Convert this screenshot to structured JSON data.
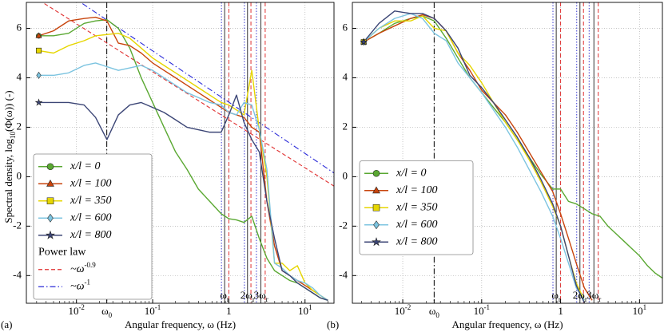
{
  "chart_data": [
    {
      "type": "line",
      "log_x": true,
      "panel_label": "(a)",
      "x_label": "Angular frequency, ω (Hz)",
      "y_label": "Spectral density, log",
      "y_label_sub": "10",
      "y_label_end": "(Φ(ω)) (-)",
      "xlim": [
        0.0022,
        24
      ],
      "ylim": [
        -5.12,
        7.05
      ],
      "xticks": [
        {
          "value": 0.01,
          "label": "10",
          "exponent": "-2"
        },
        {
          "value": 0.025,
          "label": "ω",
          "sub": "0"
        },
        {
          "value": 0.1,
          "label": "10",
          "exponent": "-1"
        },
        1,
        {
          "value": 10,
          "label": "10",
          "exponent": "1"
        }
      ],
      "yticks": [
        -4,
        -2,
        0,
        2,
        4,
        6
      ],
      "grid": true,
      "legend": "lower left",
      "harmonic_ticks": [
        {
          "value": 0.88,
          "label": "ω",
          "sub": "r"
        },
        {
          "value": 1.76,
          "label": "2ω",
          "sub": "r"
        },
        {
          "value": 2.64,
          "label": "3ω",
          "sub": "r"
        }
      ],
      "reference_lines": [
        {
          "x": 0.025,
          "color": "#000000",
          "dash": "dashdot"
        },
        {
          "x": 0.8,
          "color": "#3a3ad0",
          "dash": "dotted"
        },
        {
          "x": 1.6,
          "color": "#3a3ad0",
          "dash": "dotted"
        },
        {
          "x": 2.3,
          "color": "#3a3ad0",
          "dash": "dotted"
        },
        {
          "x": 0.88,
          "color": "#000000",
          "dash": "solid"
        },
        {
          "x": 1.76,
          "color": "#000000",
          "dash": "solid"
        },
        {
          "x": 2.64,
          "color": "#000000",
          "dash": "solid"
        },
        {
          "x": 1.0,
          "color": "#e03030",
          "dash": "dashed"
        },
        {
          "x": 1.95,
          "color": "#e03030",
          "dash": "dashed"
        },
        {
          "x": 3.0,
          "color": "#e03030",
          "dash": "dashed"
        }
      ],
      "x": [
        0.0032,
        0.005,
        0.0079,
        0.0126,
        0.0178,
        0.0251,
        0.0355,
        0.0501,
        0.0708,
        0.1,
        0.141,
        0.2,
        0.282,
        0.398,
        0.562,
        0.794,
        1,
        1.26,
        1.58,
        2,
        2.51,
        3.16,
        3.98,
        5.01,
        6.31,
        7.94,
        10,
        12.6,
        15.8,
        20
      ],
      "series": [
        {
          "name": "x/l = 0",
          "color": "#5aa832",
          "marker": "circle",
          "values": [
            5.7,
            5.7,
            5.8,
            6.2,
            6.3,
            6.35,
            6.0,
            5.2,
            4.0,
            3.0,
            2.0,
            1.0,
            0.3,
            -0.5,
            -1.0,
            -1.5,
            -1.7,
            -1.75,
            -1.85,
            -1.6,
            -2.5,
            -3.3,
            -3.8,
            -4.0,
            -4.2,
            -4.3,
            -4.5,
            -4.7,
            -4.9,
            -5.0
          ]
        },
        {
          "name": "x/l = 100",
          "color": "#c8440c",
          "marker": "triangle",
          "values": [
            5.7,
            5.9,
            6.3,
            6.4,
            6.45,
            6.3,
            5.4,
            5.3,
            5.0,
            4.6,
            4.3,
            4.0,
            3.7,
            3.4,
            3.1,
            2.8,
            2.6,
            2.5,
            2.4,
            2.0,
            1.8,
            -1.0,
            -2.8,
            -3.8,
            -4.0,
            -4.2,
            -4.4,
            -4.6,
            -4.8,
            -5.0
          ]
        },
        {
          "name": "x/l = 350",
          "color": "#e6d600",
          "marker": "square",
          "values": [
            5.1,
            5.0,
            5.3,
            5.5,
            5.7,
            5.75,
            5.8,
            5.6,
            5.2,
            4.8,
            4.5,
            4.2,
            3.9,
            3.6,
            3.3,
            3.0,
            2.9,
            2.7,
            2.5,
            4.3,
            1.9,
            0.0,
            -3.5,
            -3.5,
            -3.8,
            -3.6,
            -4.3,
            -4.6,
            -4.8,
            -5.0
          ]
        },
        {
          "name": "x/l = 600",
          "color": "#7cc4e0",
          "marker": "diamond",
          "values": [
            4.1,
            4.1,
            4.2,
            4.5,
            4.6,
            4.45,
            4.3,
            4.4,
            4.5,
            4.3,
            4.0,
            3.7,
            3.4,
            3.2,
            3.0,
            2.9,
            2.6,
            2.5,
            3.0,
            2.9,
            1.9,
            0.3,
            -3.5,
            -3.7,
            -4.0,
            -4.2,
            -4.3,
            -4.5,
            -4.8,
            -5.0
          ]
        },
        {
          "name": "x/l = 800",
          "color": "#3c4676",
          "marker": "star",
          "values": [
            3.0,
            3.0,
            3.0,
            2.9,
            2.4,
            1.5,
            2.5,
            2.9,
            3.0,
            2.8,
            2.6,
            2.3,
            2.0,
            1.9,
            1.8,
            1.8,
            2.5,
            3.3,
            2.2,
            1.5,
            1.0,
            -1.0,
            -2.5,
            -3.8,
            -4.0,
            -4.3,
            -4.5,
            -4.7,
            -4.9,
            -5.0
          ]
        }
      ],
      "legend_title": "Power law",
      "power_laws": [
        {
          "name": "~ω",
          "exponent": "-0.9",
          "color": "#e03030",
          "dash": "dashed",
          "x": [
            0.0038,
            24
          ],
          "values": [
            7.0,
            -0.38
          ]
        },
        {
          "name": "~ω",
          "exponent": "-1",
          "color": "#2a2ad8",
          "dash": "dashdot",
          "x": [
            0.012,
            24
          ],
          "values": [
            7.0,
            0.15
          ]
        }
      ]
    },
    {
      "type": "line",
      "log_x": true,
      "panel_label": "(b)",
      "x_label": "Angular frequency, ω (Hz)",
      "xlim": [
        0.0023,
        19.5
      ],
      "ylim": [
        -5.12,
        7.05
      ],
      "xticks": [
        {
          "value": 0.01,
          "label": "10",
          "exponent": "-2"
        },
        {
          "value": 0.025,
          "label": "ω",
          "sub": "0"
        },
        {
          "value": 0.1,
          "label": "10",
          "exponent": "-1"
        },
        1,
        {
          "value": 10,
          "label": "10",
          "exponent": "1"
        }
      ],
      "yticks": [
        -4,
        -2,
        0,
        2,
        4,
        6
      ],
      "grid": true,
      "legend": "center left",
      "harmonic_ticks": [
        {
          "value": 0.88,
          "label": "ω",
          "sub": "r"
        },
        {
          "value": 1.76,
          "label": "2ω",
          "sub": "r"
        },
        {
          "value": 2.64,
          "label": "3ω",
          "sub": "r"
        }
      ],
      "reference_lines": [
        {
          "x": 0.025,
          "color": "#000000",
          "dash": "dashdot"
        },
        {
          "x": 0.8,
          "color": "#3a3ad0",
          "dash": "dotted"
        },
        {
          "x": 1.6,
          "color": "#3a3ad0",
          "dash": "dotted"
        },
        {
          "x": 2.3,
          "color": "#3a3ad0",
          "dash": "dotted"
        },
        {
          "x": 0.88,
          "color": "#000000",
          "dash": "solid"
        },
        {
          "x": 1.76,
          "color": "#000000",
          "dash": "solid"
        },
        {
          "x": 2.64,
          "color": "#000000",
          "dash": "solid"
        },
        {
          "x": 1.0,
          "color": "#e03030",
          "dash": "dashed"
        },
        {
          "x": 1.95,
          "color": "#e03030",
          "dash": "dashed"
        },
        {
          "x": 3.0,
          "color": "#e03030",
          "dash": "dashed"
        }
      ],
      "x": [
        0.0032,
        0.005,
        0.0079,
        0.0126,
        0.0178,
        0.0251,
        0.0355,
        0.0501,
        0.0708,
        0.1,
        0.141,
        0.2,
        0.282,
        0.398,
        0.562,
        0.794,
        1,
        1.26,
        1.58,
        2,
        2.51,
        3.16,
        3.98,
        5.01,
        6.31,
        7.94,
        10,
        12.6,
        15.8,
        19.5
      ],
      "series": [
        {
          "name": "x/l = 0",
          "color": "#5aa832",
          "marker": "circle",
          "values": [
            5.45,
            5.8,
            6.2,
            6.4,
            6.5,
            6.3,
            5.6,
            4.8,
            4.0,
            3.4,
            2.8,
            2.2,
            1.5,
            0.8,
            0.1,
            -0.5,
            -0.5,
            -1.0,
            -1.1,
            -1.3,
            -1.5,
            -1.6,
            -2.0,
            -2.3,
            -2.6,
            -2.9,
            -3.2,
            -3.6,
            -3.9,
            -4.1
          ]
        },
        {
          "name": "x/l = 100",
          "color": "#c8440c",
          "marker": "triangle",
          "values": [
            5.45,
            5.8,
            6.1,
            6.4,
            6.55,
            6.4,
            5.9,
            5.0,
            4.3,
            3.5,
            3.0,
            2.5,
            1.8,
            1.0,
            0.2,
            -0.6,
            -1.5,
            -2.5,
            -3.5,
            -4.5,
            -5.0,
            null,
            null,
            null,
            null,
            null,
            null,
            null,
            null,
            null
          ]
        },
        {
          "name": "x/l = 350",
          "color": "#e6d600",
          "marker": "square",
          "values": [
            5.45,
            6.0,
            6.3,
            6.3,
            6.5,
            6.0,
            5.9,
            5.0,
            4.5,
            3.8,
            3.0,
            2.2,
            1.5,
            0.7,
            -0.2,
            -1.2,
            -2.0,
            -3.2,
            -4.3,
            -5.0,
            null,
            null,
            null,
            null,
            null,
            null,
            null,
            null,
            null,
            null
          ]
        },
        {
          "name": "x/l = 600",
          "color": "#7cc4e0",
          "marker": "diamond",
          "values": [
            5.45,
            6.0,
            6.4,
            6.6,
            6.4,
            5.8,
            5.5,
            4.6,
            4.0,
            3.4,
            2.7,
            2.0,
            1.2,
            0.3,
            -0.6,
            -1.6,
            -2.5,
            -3.5,
            -4.5,
            -5.0,
            null,
            null,
            null,
            null,
            null,
            null,
            null,
            null,
            null,
            null
          ]
        },
        {
          "name": "x/l = 800",
          "color": "#3c4676",
          "marker": "star",
          "values": [
            5.45,
            6.2,
            6.7,
            6.6,
            6.6,
            6.4,
            5.9,
            5.2,
            4.1,
            3.6,
            3.0,
            2.3,
            1.6,
            0.8,
            -0.1,
            -1.1,
            -2.0,
            -3.2,
            -4.4,
            -5.1,
            null,
            null,
            null,
            null,
            null,
            null,
            null,
            null,
            null,
            null
          ]
        }
      ]
    }
  ]
}
